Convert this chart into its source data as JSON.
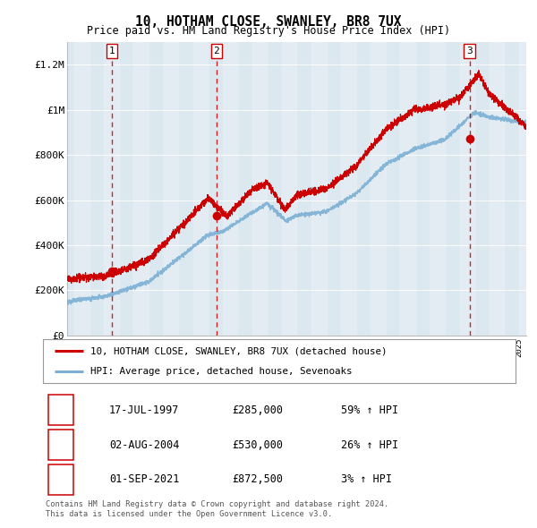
{
  "title": "10, HOTHAM CLOSE, SWANLEY, BR8 7UX",
  "subtitle": "Price paid vs. HM Land Registry's House Price Index (HPI)",
  "hpi_color": "#7bafd4",
  "price_color": "#cc0000",
  "background_chart": "#dce8f0",
  "purchases": [
    {
      "date_num": 1997.54,
      "price": 285000,
      "label": "1",
      "date_str": "17-JUL-1997",
      "pct": "59% ↑ HPI"
    },
    {
      "date_num": 2004.58,
      "price": 530000,
      "label": "2",
      "date_str": "02-AUG-2004",
      "pct": "26% ↑ HPI"
    },
    {
      "date_num": 2021.67,
      "price": 872500,
      "label": "3",
      "date_str": "01-SEP-2021",
      "pct": "3% ↑ HPI"
    }
  ],
  "legend_line1": "10, HOTHAM CLOSE, SWANLEY, BR8 7UX (detached house)",
  "legend_line2": "HPI: Average price, detached house, Sevenoaks",
  "footnote1": "Contains HM Land Registry data © Crown copyright and database right 2024.",
  "footnote2": "This data is licensed under the Open Government Licence v3.0.",
  "ylim": [
    0,
    1300000
  ],
  "xlim_start": 1994.5,
  "xlim_end": 2025.5,
  "yticks": [
    0,
    200000,
    400000,
    600000,
    800000,
    1000000,
    1200000
  ],
  "ylabels": [
    "£0",
    "£200K",
    "£400K",
    "£600K",
    "£800K",
    "£1M",
    "£1.2M"
  ]
}
